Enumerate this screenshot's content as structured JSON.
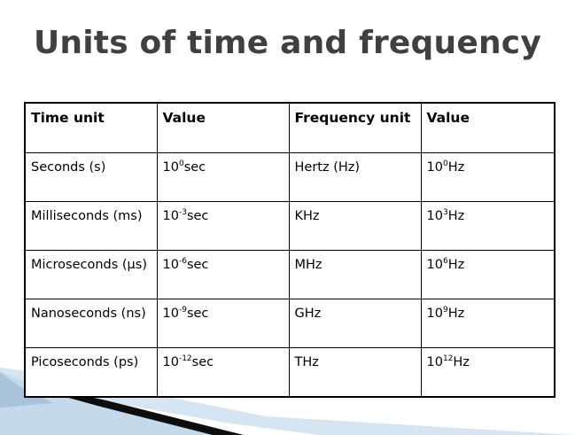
{
  "slide": {
    "title": "Units of time and frequency"
  },
  "table": {
    "headers": [
      "Time unit",
      "Value",
      "Frequency unit",
      "Value"
    ],
    "rows": [
      {
        "time_unit": "Seconds (s)",
        "time_base": "10",
        "time_exp": "0",
        "time_suffix": "sec",
        "freq_unit": "Hertz (Hz)",
        "freq_base": "10",
        "freq_exp": "0",
        "freq_suffix": "Hz"
      },
      {
        "time_unit": "Milliseconds (ms)",
        "time_base": "10",
        "time_exp": "-3",
        "time_suffix": "sec",
        "freq_unit": "KHz",
        "freq_base": "10",
        "freq_exp": "3",
        "freq_suffix": "Hz"
      },
      {
        "time_unit": "Microseconds (μs)",
        "time_base": "10",
        "time_exp": "-6",
        "time_suffix": "sec",
        "freq_unit": "MHz",
        "freq_base": "10",
        "freq_exp": "6",
        "freq_suffix": "Hz"
      },
      {
        "time_unit": "Nanoseconds (ns)",
        "time_base": "10",
        "time_exp": "-9",
        "time_suffix": "sec",
        "freq_unit": "GHz",
        "freq_base": "10",
        "freq_exp": "9",
        "freq_suffix": "Hz"
      },
      {
        "time_unit": "Picoseconds (ps)",
        "time_base": "10",
        "time_exp": "-12",
        "time_suffix": "sec",
        "freq_unit": "THz",
        "freq_base": "10",
        "freq_exp": "12",
        "freq_suffix": "Hz"
      }
    ]
  },
  "colors": {
    "title": "#404040",
    "decoration_dark": "#0d0d0d",
    "decoration_light": "#bcd6e8",
    "decoration_mid": "#8fb3cf"
  }
}
